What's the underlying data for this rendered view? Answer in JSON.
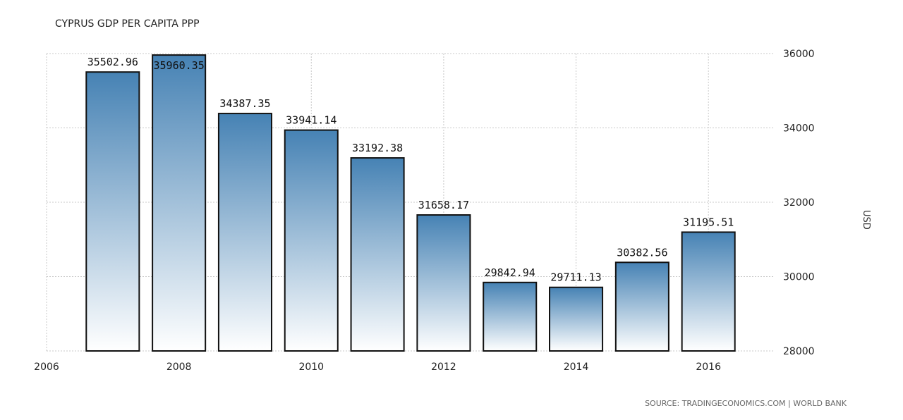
{
  "chart_data": {
    "type": "bar",
    "title": "CYPRUS GDP PER CAPITA PPP",
    "x": [
      2007,
      2008,
      2009,
      2010,
      2011,
      2012,
      2013,
      2014,
      2015,
      2016
    ],
    "values": [
      35502.96,
      35960.35,
      34387.35,
      33941.14,
      33192.38,
      31658.17,
      29842.94,
      29711.13,
      30382.56,
      31195.51
    ],
    "value_labels": [
      "35502.96",
      "35960.35",
      "34387.35",
      "33941.14",
      "33192.38",
      "31658.17",
      "29842.94",
      "29711.13",
      "30382.56",
      "31195.51"
    ],
    "x_ticks": [
      "2006",
      "2008",
      "2010",
      "2012",
      "2014",
      "2016"
    ],
    "y_ticks": [
      "28000",
      "30000",
      "32000",
      "34000",
      "36000"
    ],
    "xlim": [
      2006,
      2017
    ],
    "ylim": [
      28000,
      36000
    ],
    "ylabel": "USD",
    "y_axis_position": "right",
    "grid": true,
    "bar_gradient": [
      "#4682b4",
      "#ffffff"
    ]
  },
  "source": "SOURCE: TRADINGECONOMICS.COM | WORLD BANK"
}
